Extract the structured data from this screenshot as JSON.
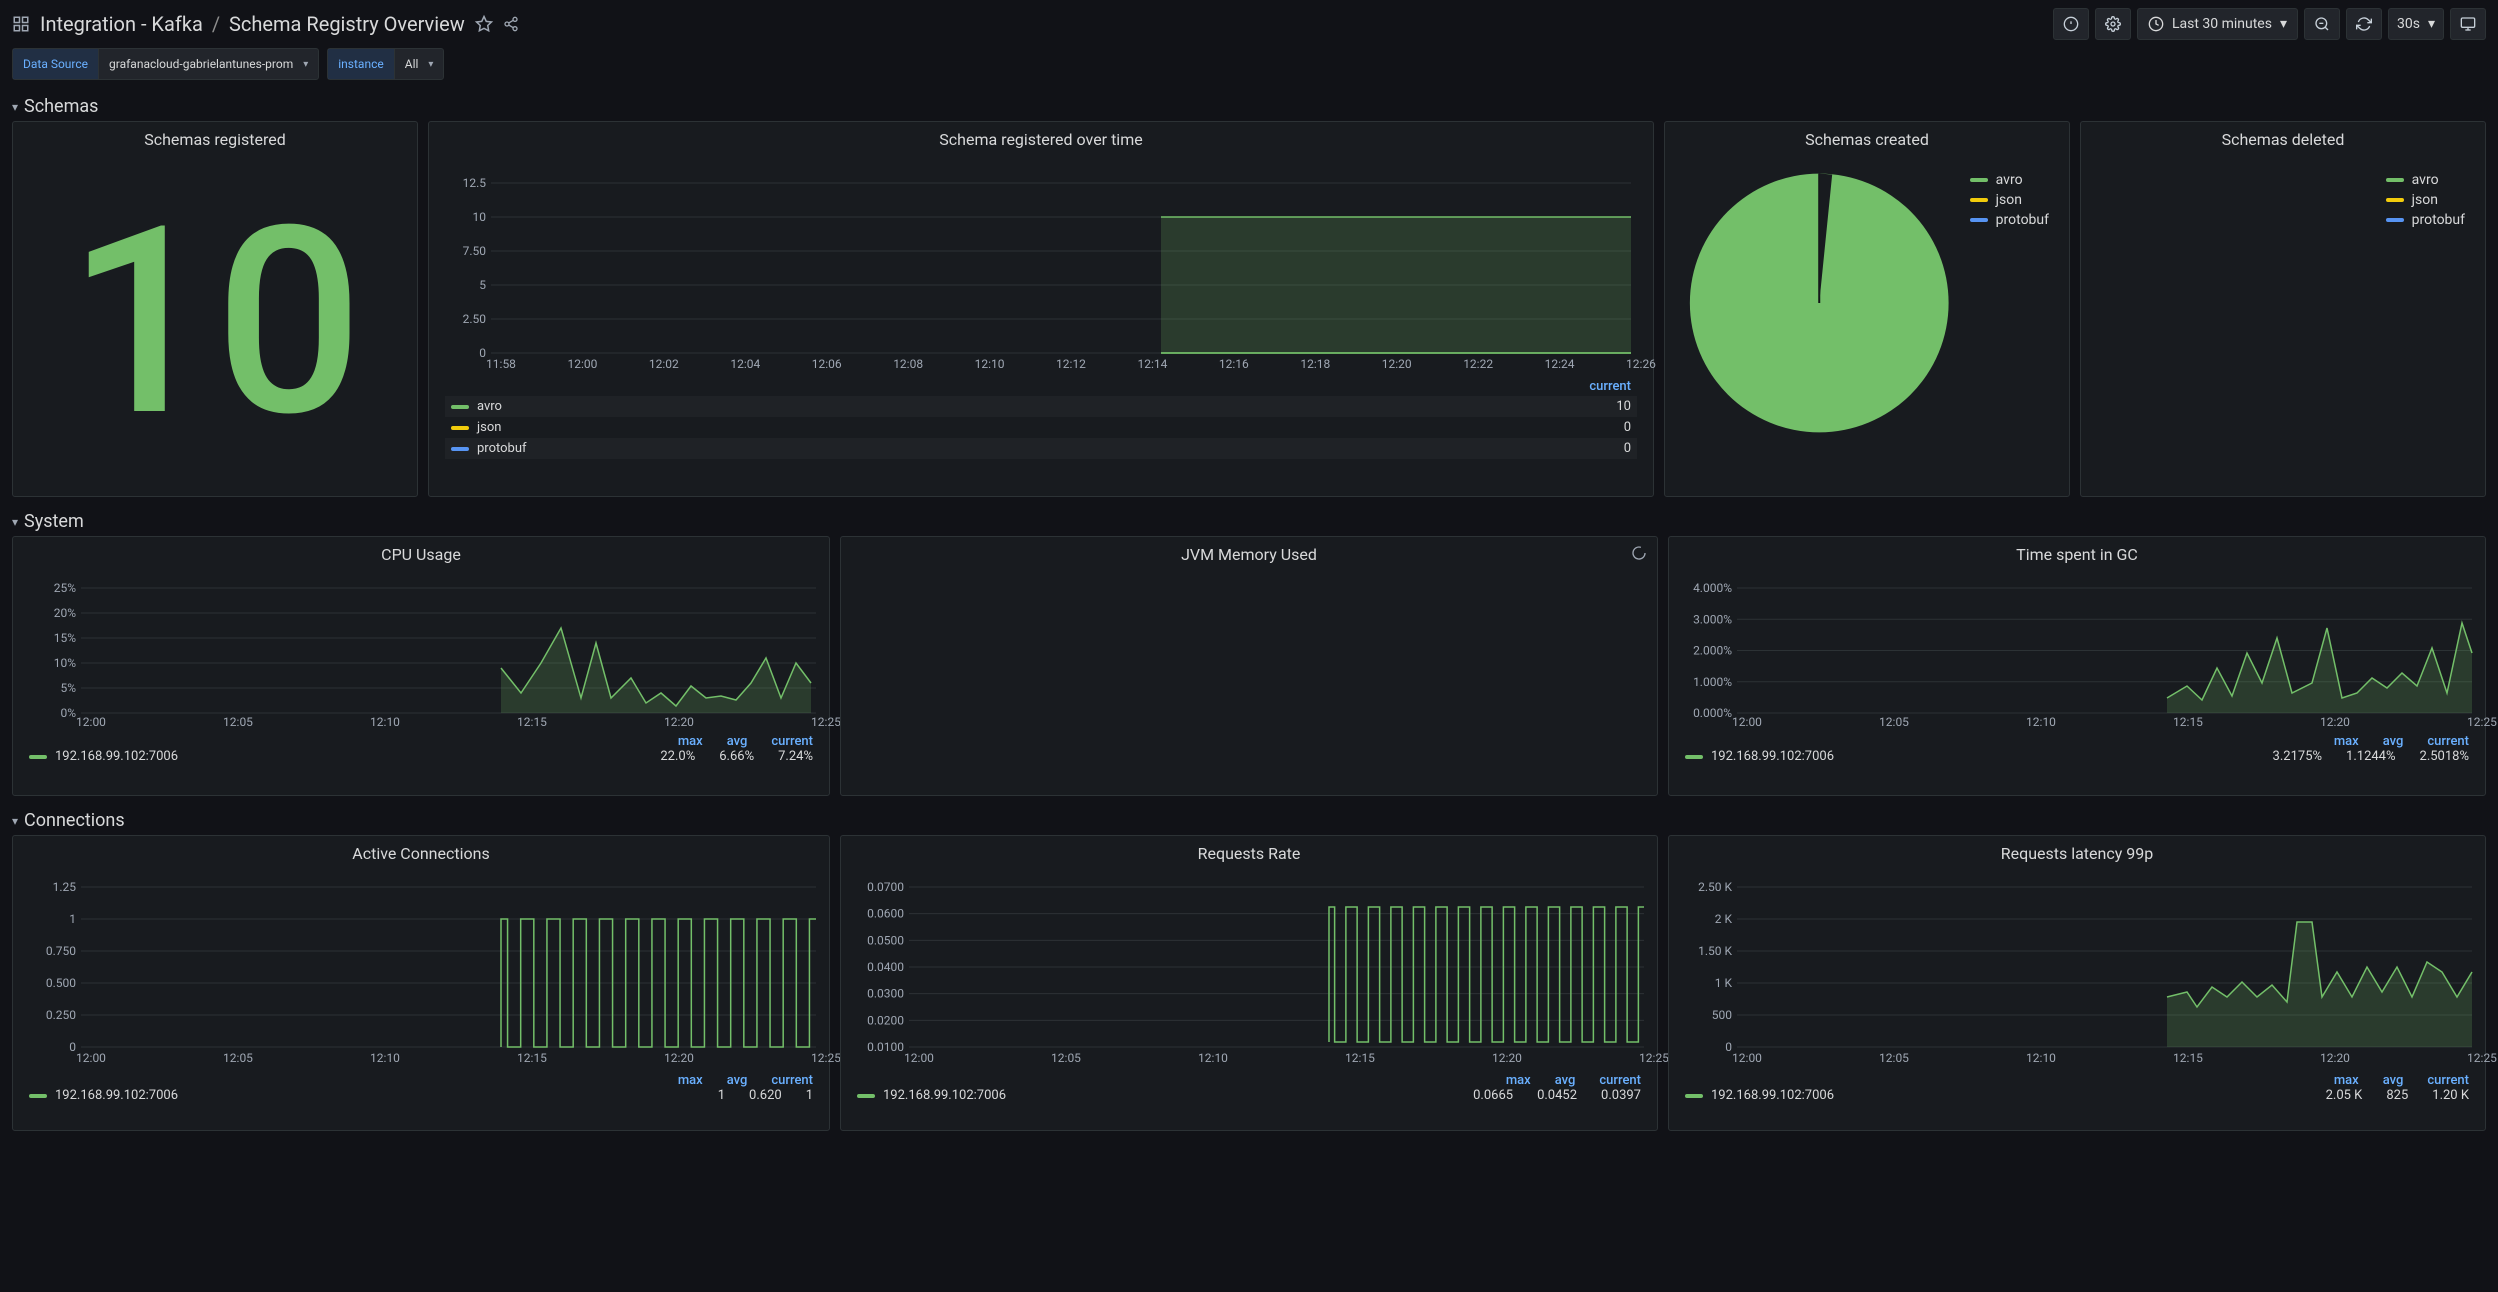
{
  "header": {
    "folder": "Integration - Kafka",
    "title": "Schema Registry Overview",
    "timeRange": "Last 30 minutes",
    "refreshInterval": "30s"
  },
  "variables": {
    "dataSource": {
      "label": "Data Source",
      "value": "grafanacloud-gabrielantunes-prom"
    },
    "instance": {
      "label": "instance",
      "value": "All"
    }
  },
  "sections": {
    "schemas": "Schemas",
    "system": "System",
    "connections": "Connections"
  },
  "colors": {
    "green": "#73bf69",
    "yellow": "#f2cc0c",
    "blue": "#5794f2",
    "panel": "#181b1f",
    "grid": "#2c3235",
    "link": "#6ab0ff"
  },
  "panels": {
    "schemasRegistered": {
      "title": "Schemas registered",
      "value": "10"
    },
    "schemaOverTime": {
      "title": "Schema registered over time",
      "yTicks": [
        "0",
        "2.50",
        "5",
        "7.50",
        "10",
        "12.5"
      ],
      "xTicks": [
        "11:58",
        "12:00",
        "12:02",
        "12:04",
        "12:06",
        "12:08",
        "12:10",
        "12:12",
        "12:14",
        "12:16",
        "12:18",
        "12:20",
        "12:22",
        "12:24",
        "12:26"
      ],
      "currentHeader": "current",
      "series": [
        {
          "name": "avro",
          "color": "#73bf69",
          "current": "10"
        },
        {
          "name": "json",
          "color": "#f2cc0c",
          "current": "0"
        },
        {
          "name": "protobuf",
          "color": "#5794f2",
          "current": "0"
        }
      ]
    },
    "schemasCreated": {
      "title": "Schemas created",
      "legend": [
        {
          "name": "avro",
          "color": "#73bf69"
        },
        {
          "name": "json",
          "color": "#f2cc0c"
        },
        {
          "name": "protobuf",
          "color": "#5794f2"
        }
      ]
    },
    "schemasDeleted": {
      "title": "Schemas deleted",
      "legend": [
        {
          "name": "avro",
          "color": "#73bf69"
        },
        {
          "name": "json",
          "color": "#f2cc0c"
        },
        {
          "name": "protobuf",
          "color": "#5794f2"
        }
      ]
    },
    "cpuUsage": {
      "title": "CPU Usage",
      "yTicks": [
        "0%",
        "5%",
        "10%",
        "15%",
        "20%",
        "25%"
      ],
      "xTicks": [
        "12:00",
        "12:05",
        "12:10",
        "12:15",
        "12:20",
        "12:25"
      ],
      "stats": {
        "headers": [
          "max",
          "avg",
          "current"
        ],
        "host": "192.168.99.102:7006",
        "values": [
          "22.0%",
          "6.66%",
          "7.24%"
        ]
      }
    },
    "jvmMemory": {
      "title": "JVM Memory Used"
    },
    "timeInGC": {
      "title": "Time spent in GC",
      "yTicks": [
        "0.000%",
        "1.000%",
        "2.000%",
        "3.000%",
        "4.000%"
      ],
      "xTicks": [
        "12:00",
        "12:05",
        "12:10",
        "12:15",
        "12:20",
        "12:25"
      ],
      "stats": {
        "headers": [
          "max",
          "avg",
          "current"
        ],
        "host": "192.168.99.102:7006",
        "values": [
          "3.2175%",
          "1.1244%",
          "2.5018%"
        ]
      }
    },
    "activeConns": {
      "title": "Active Connections",
      "yTicks": [
        "0",
        "0.250",
        "0.500",
        "0.750",
        "1",
        "1.25"
      ],
      "xTicks": [
        "12:00",
        "12:05",
        "12:10",
        "12:15",
        "12:20",
        "12:25"
      ],
      "stats": {
        "headers": [
          "max",
          "avg",
          "current"
        ],
        "host": "192.168.99.102:7006",
        "values": [
          "1",
          "0.620",
          "1"
        ]
      }
    },
    "requestsRate": {
      "title": "Requests Rate",
      "yTicks": [
        "0.0100",
        "0.0200",
        "0.0300",
        "0.0400",
        "0.0500",
        "0.0600",
        "0.0700"
      ],
      "xTicks": [
        "12:00",
        "12:05",
        "12:10",
        "12:15",
        "12:20",
        "12:25"
      ],
      "stats": {
        "headers": [
          "max",
          "avg",
          "current"
        ],
        "host": "192.168.99.102:7006",
        "values": [
          "0.0665",
          "0.0452",
          "0.0397"
        ]
      }
    },
    "requestsLatency": {
      "title": "Requests latency 99p",
      "yTicks": [
        "0",
        "500",
        "1 K",
        "1.50 K",
        "2 K",
        "2.50 K"
      ],
      "xTicks": [
        "12:00",
        "12:05",
        "12:10",
        "12:15",
        "12:20",
        "12:25"
      ],
      "stats": {
        "headers": [
          "max",
          "avg",
          "current"
        ],
        "host": "192.168.99.102:7006",
        "values": [
          "2.05 K",
          "825",
          "1.20 K"
        ]
      }
    }
  }
}
